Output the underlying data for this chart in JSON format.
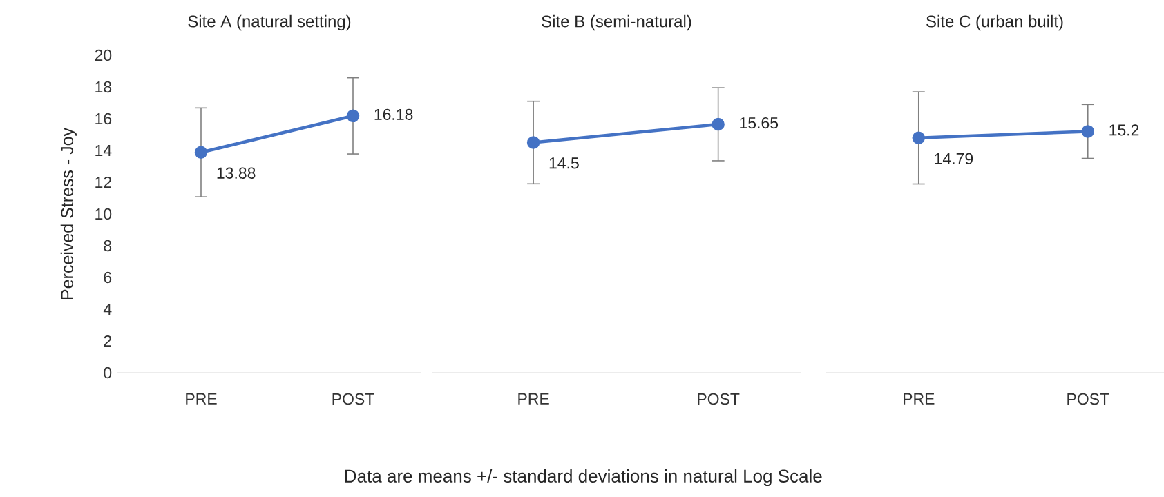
{
  "chart_data": [
    {
      "type": "line",
      "title": "Site A (natural setting)",
      "ylabel": "Perceived Stress - Joy",
      "categories": [
        "PRE",
        "POST"
      ],
      "series": [
        {
          "color": "#4472c4",
          "values": [
            13.88,
            16.18
          ],
          "errors": [
            2.8,
            2.4
          ]
        }
      ],
      "ylim": [
        0,
        20
      ],
      "yticks": [
        0,
        2,
        4,
        6,
        8,
        10,
        12,
        14,
        16,
        18,
        20
      ],
      "data_labels": true,
      "marker": "circle",
      "grid": false
    },
    {
      "type": "line",
      "title": "Site B (semi-natural)",
      "categories": [
        "PRE",
        "POST"
      ],
      "series": [
        {
          "color": "#4472c4",
          "values": [
            14.5,
            15.65
          ],
          "errors": [
            2.6,
            2.3
          ]
        }
      ],
      "ylim": [
        0,
        20
      ],
      "yticks": [
        0,
        2,
        4,
        6,
        8,
        10,
        12,
        14,
        16,
        18,
        20
      ],
      "tick_labels": "x",
      "data_labels": true,
      "marker": "circle",
      "grid": false,
      "annotations": [
        "Data are means +/- standard deviations in natural Log Scale"
      ]
    },
    {
      "type": "line",
      "title": "Site C (urban built)",
      "categories": [
        "PRE",
        "POST"
      ],
      "series": [
        {
          "color": "#4472c4",
          "values": [
            14.79,
            15.2
          ],
          "errors": [
            2.9,
            1.7
          ]
        }
      ],
      "ylim": [
        0,
        20
      ],
      "yticks": [
        0,
        2,
        4,
        6,
        8,
        10,
        12,
        14,
        16,
        18,
        20
      ],
      "tick_labels": "x",
      "data_labels": true,
      "marker": "circle",
      "grid": false
    }
  ]
}
